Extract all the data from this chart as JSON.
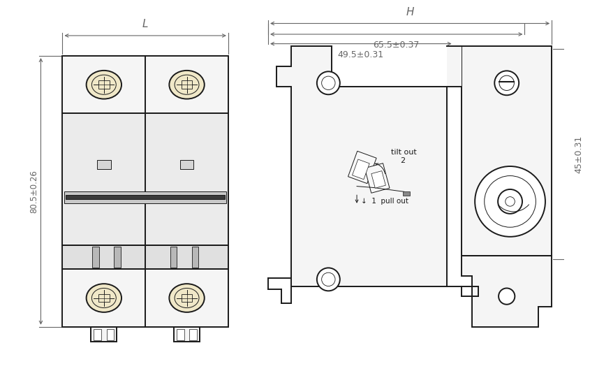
{
  "bg_color": "#ffffff",
  "line_color": "#1a1a1a",
  "dim_color": "#666666",
  "fill_cream": "#f0e8c8",
  "fill_light": "#f5f5f5",
  "fill_gray": "#e0e0e0",
  "dim_L_label": "L",
  "dim_H_label": "H",
  "dim_80": "80.5±0.26",
  "dim_65": "65.5±0.37",
  "dim_49": "49.5±0.31",
  "dim_45": "45±0.31",
  "label_tilt": "tilt out",
  "label_2": "2",
  "label_pull": "↓  1  pull out"
}
